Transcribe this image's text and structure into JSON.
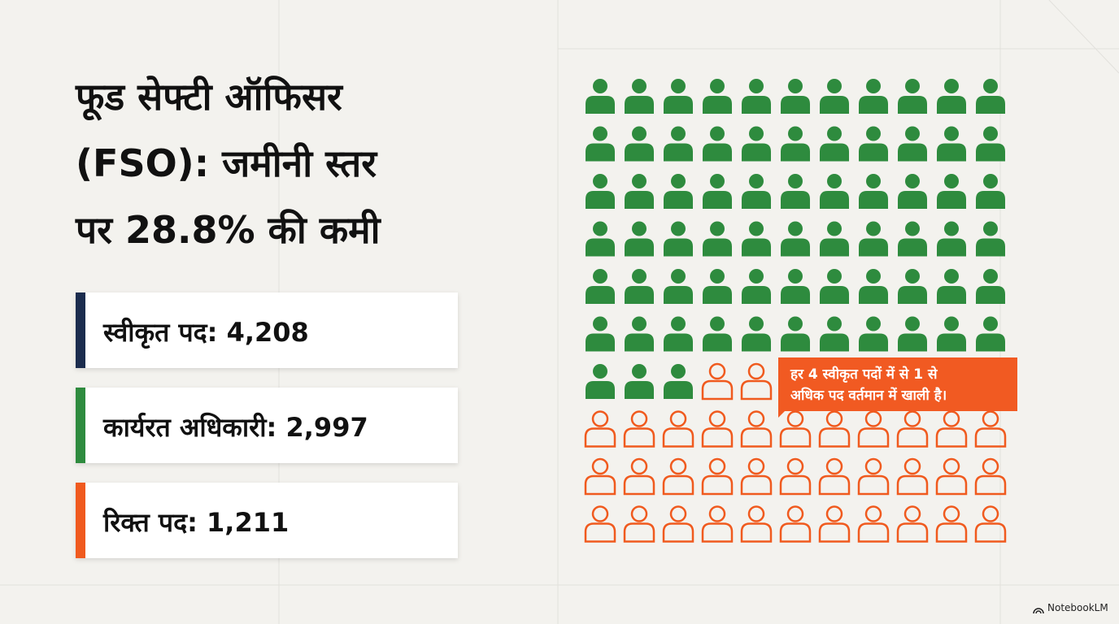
{
  "title_lines": [
    "फूड सेफ्टी ऑफिसर",
    "(FSO): जमीनी स्तर",
    "पर 28.8% की कमी"
  ],
  "stats": [
    {
      "label": "स्वीकृत पद:",
      "value": "4,208"
    },
    {
      "label": "कार्यरत अधिकारी:",
      "value": "2,997"
    },
    {
      "label": "रिक्त पद:",
      "value": "1,211"
    }
  ],
  "callout_lines": [
    "हर 4 स्वीकृत पदों में से 1 से",
    "अधिक पद वर्तमान में खाली है।"
  ],
  "brand": "NotebookLM"
}
